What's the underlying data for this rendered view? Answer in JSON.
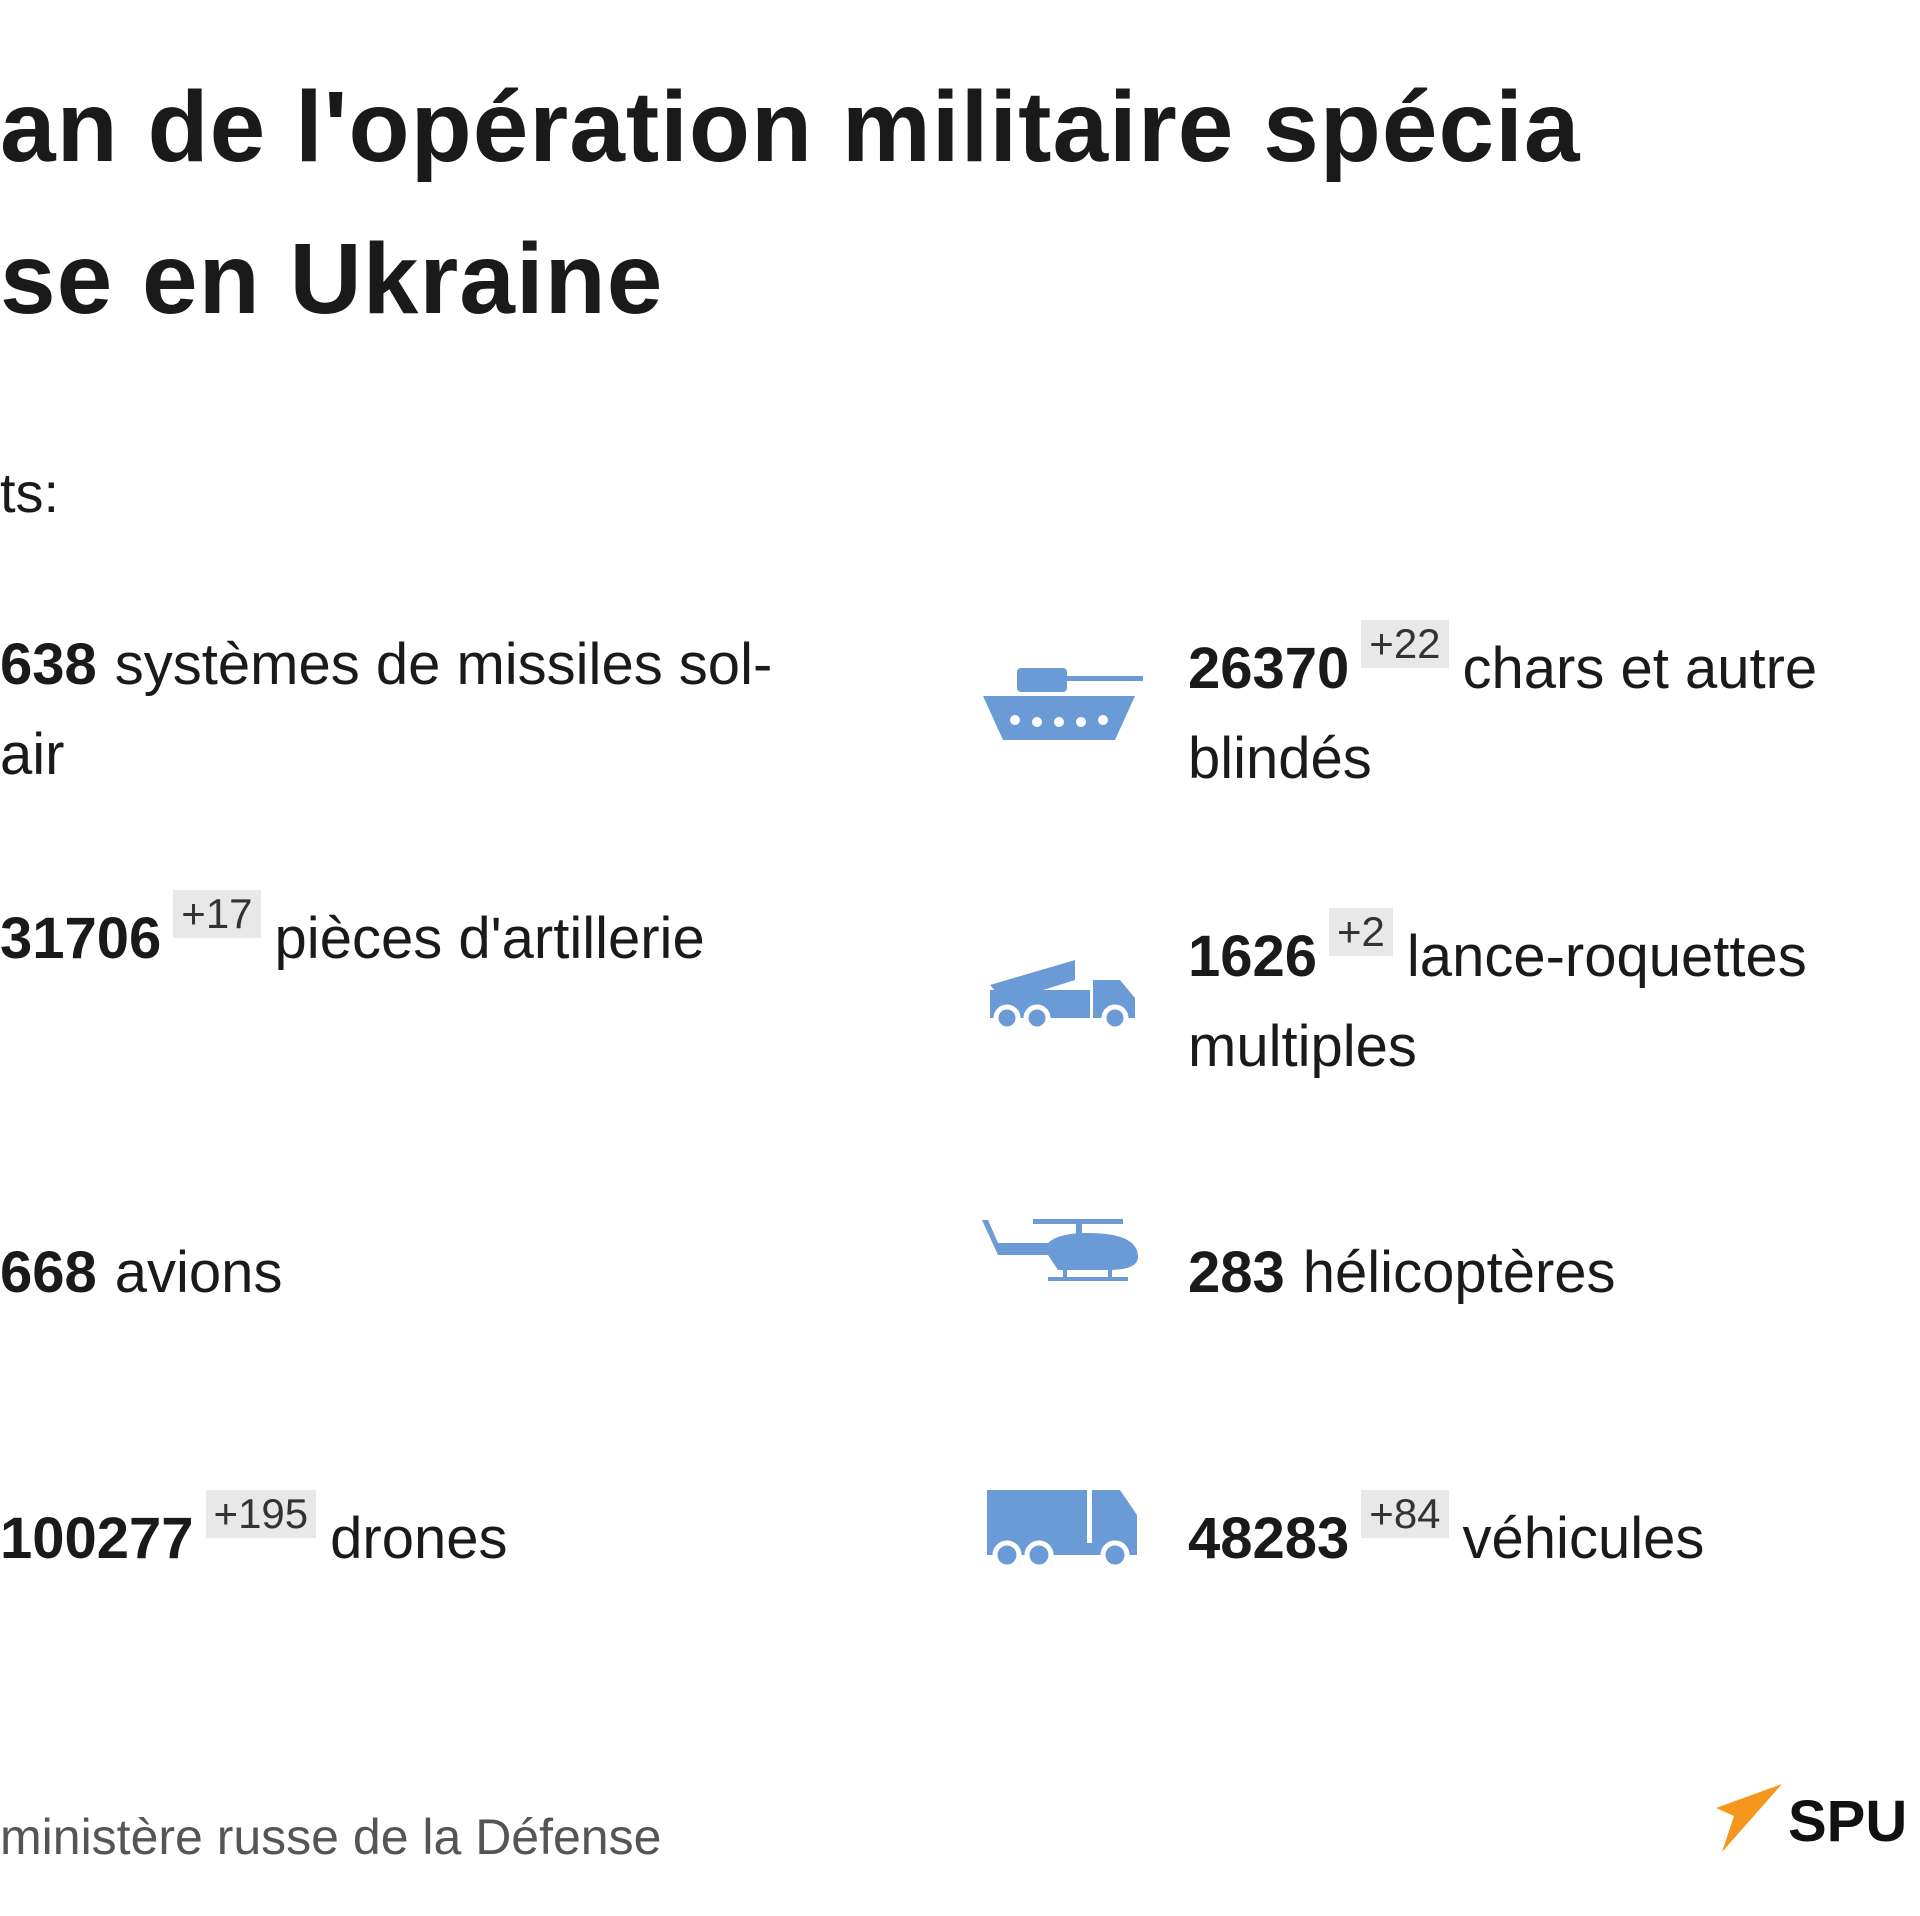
{
  "title": {
    "lines": [
      "an de l'opération militaire spécia",
      "se en Ukraine"
    ]
  },
  "subtitle": "ts:",
  "items": [
    {
      "count": 638,
      "label_lines": [
        "systèmes de missiles sol-",
        "air"
      ]
    },
    {
      "count": 31706,
      "delta": "+17",
      "label_lines": [
        "pièces d'artillerie"
      ]
    },
    {
      "count": 668,
      "label_lines": [
        "avions"
      ]
    },
    {
      "count": 100277,
      "delta": "+195",
      "label_lines": [
        "drones"
      ]
    },
    {
      "count": 26370,
      "delta": "+22",
      "label_lines": [
        "chars et autre",
        "blindés"
      ]
    },
    {
      "count": 1626,
      "delta": "+2",
      "label_lines": [
        "lance-roquettes",
        "multiples"
      ]
    },
    {
      "count": 283,
      "label_lines": [
        "hélicoptères"
      ]
    },
    {
      "count": 48283,
      "delta": "+84",
      "label_lines": [
        "véhicules"
      ]
    }
  ],
  "source": "ministère russe de la Défense",
  "logo": "SPU"
}
